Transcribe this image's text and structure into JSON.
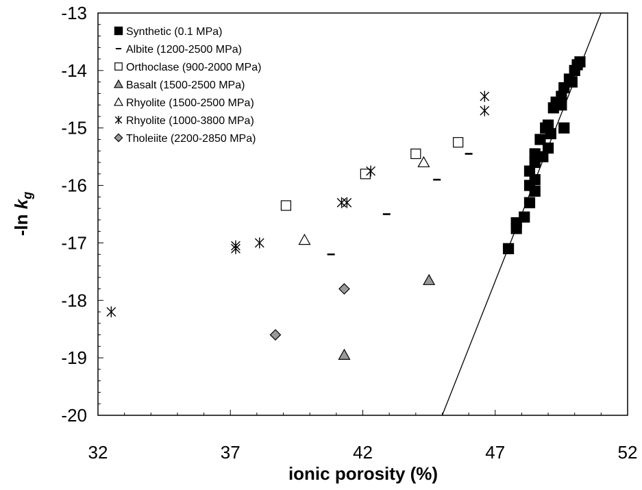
{
  "chart_data": {
    "type": "scatter",
    "xlabel": "ionic porosity (%)",
    "ylabel_main": "-ln ",
    "ylabel_italic": "k",
    "ylabel_sub": "g",
    "xlim": [
      32,
      52
    ],
    "ylim": [
      -20,
      -13
    ],
    "xticks": [
      "32",
      "37",
      "42",
      "47",
      "52"
    ],
    "yticks": [
      "-13",
      "-14",
      "-15",
      "-16",
      "-17",
      "-18",
      "-19",
      "-20"
    ],
    "legend_position": "top-left",
    "colors": {
      "black": "#000000",
      "gray": "#999999",
      "white": "#ffffff"
    },
    "series": [
      {
        "name": "Synthetic (0.1 MPa)",
        "marker": "filled-square",
        "points": [
          [
            47.5,
            -17.1
          ],
          [
            47.8,
            -16.65
          ],
          [
            47.8,
            -16.75
          ],
          [
            48.1,
            -16.55
          ],
          [
            48.3,
            -16.3
          ],
          [
            48.3,
            -16.0
          ],
          [
            48.3,
            -15.75
          ],
          [
            48.5,
            -16.1
          ],
          [
            48.5,
            -15.9
          ],
          [
            48.5,
            -15.6
          ],
          [
            48.5,
            -15.45
          ],
          [
            48.7,
            -15.2
          ],
          [
            48.8,
            -15.5
          ],
          [
            49.0,
            -15.35
          ],
          [
            48.9,
            -15.0
          ],
          [
            49.0,
            -14.95
          ],
          [
            49.1,
            -15.1
          ],
          [
            49.2,
            -14.65
          ],
          [
            49.3,
            -14.55
          ],
          [
            49.5,
            -14.6
          ],
          [
            49.5,
            -14.45
          ],
          [
            49.6,
            -15.0
          ],
          [
            49.6,
            -14.3
          ],
          [
            49.8,
            -14.15
          ],
          [
            49.9,
            -14.2
          ],
          [
            50.0,
            -14.0
          ],
          [
            50.1,
            -13.9
          ],
          [
            50.2,
            -13.85
          ]
        ]
      },
      {
        "name": "Albite (1200-2500 MPa)",
        "marker": "dash",
        "points": [
          [
            40.8,
            -17.2
          ],
          [
            42.9,
            -16.5
          ],
          [
            44.8,
            -15.9
          ],
          [
            46.0,
            -15.45
          ]
        ]
      },
      {
        "name": "Orthoclase (900-2000 MPa)",
        "marker": "open-square",
        "points": [
          [
            39.1,
            -16.35
          ],
          [
            42.1,
            -15.8
          ],
          [
            44.0,
            -15.45
          ],
          [
            45.6,
            -15.25
          ]
        ]
      },
      {
        "name": "Basalt (1500-2500 MPa)",
        "marker": "gray-triangle",
        "points": [
          [
            41.3,
            -18.95
          ],
          [
            44.5,
            -17.65
          ]
        ]
      },
      {
        "name": "Rhyolite (1500-2500 MPa)",
        "marker": "open-triangle",
        "points": [
          [
            39.8,
            -16.95
          ],
          [
            44.3,
            -15.6
          ]
        ]
      },
      {
        "name": "Rhyolite (1000-3800 MPa)",
        "marker": "asterisk",
        "points": [
          [
            32.5,
            -18.2
          ],
          [
            37.2,
            -17.05
          ],
          [
            37.2,
            -17.1
          ],
          [
            38.1,
            -17.0
          ],
          [
            41.2,
            -16.3
          ],
          [
            41.4,
            -16.3
          ],
          [
            42.3,
            -15.75
          ],
          [
            46.6,
            -14.45
          ],
          [
            46.6,
            -14.7
          ]
        ]
      },
      {
        "name": "Tholeiite (2200-2850 MPa)",
        "marker": "gray-diamond",
        "points": [
          [
            38.7,
            -18.6
          ],
          [
            41.3,
            -17.8
          ]
        ]
      }
    ],
    "fit_line": {
      "points": [
        [
          45.0,
          -20.0
        ],
        [
          51.0,
          -13.0
        ]
      ]
    }
  }
}
